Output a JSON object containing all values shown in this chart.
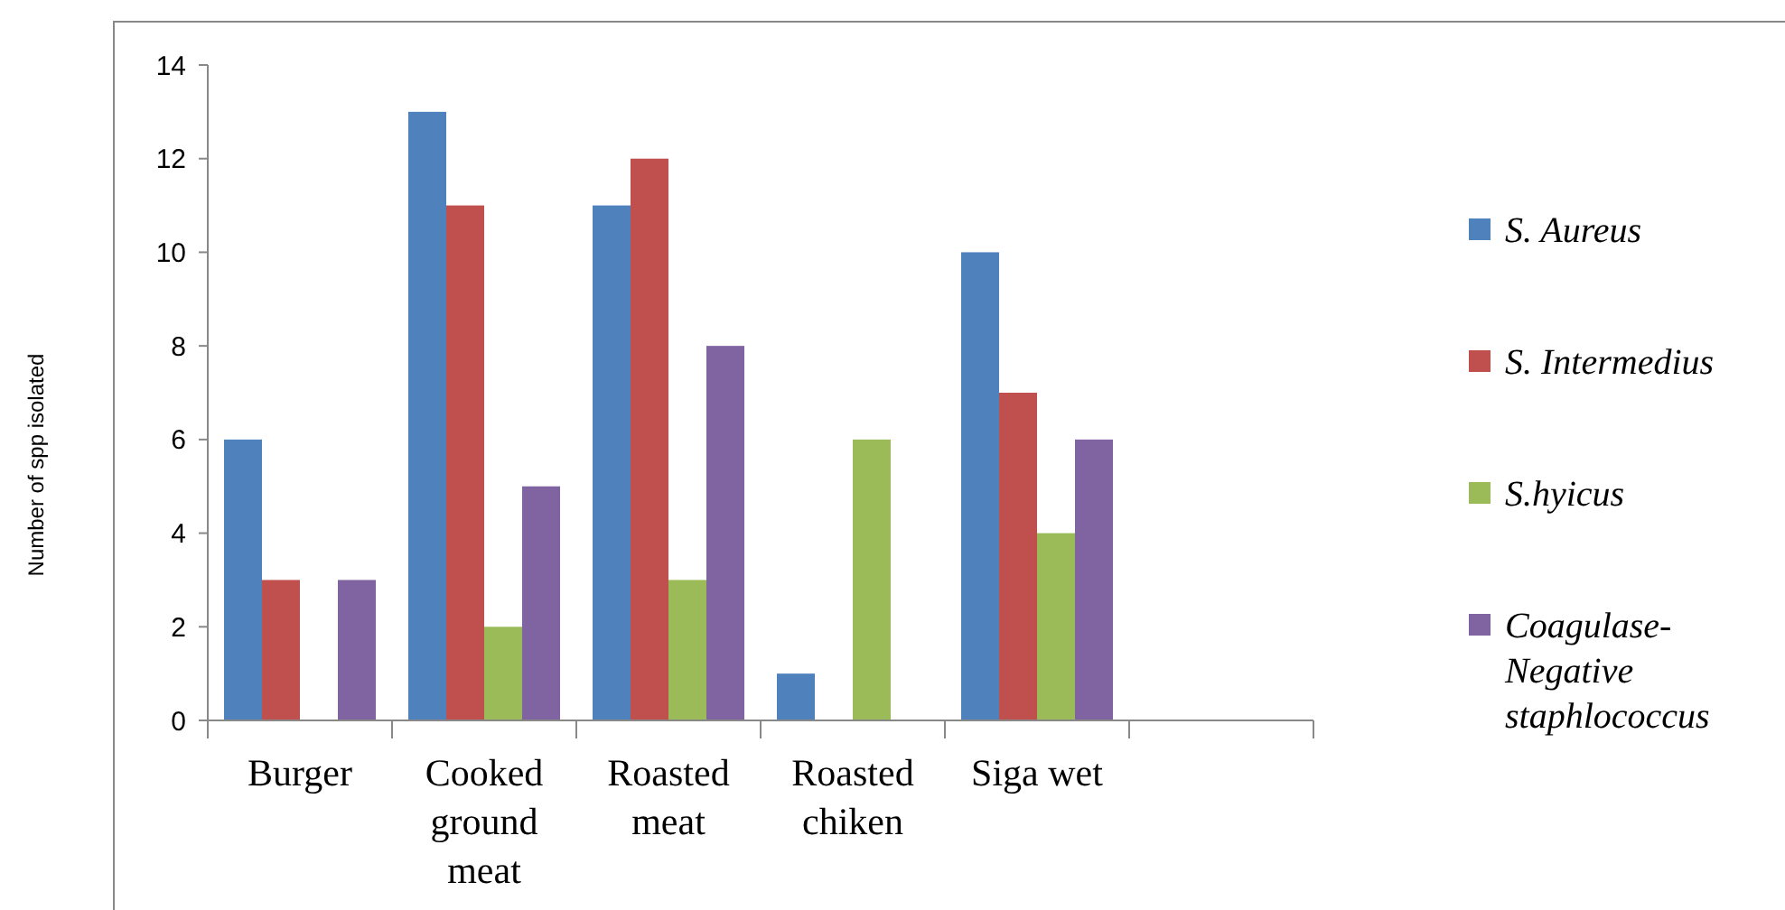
{
  "chart_data": {
    "type": "bar",
    "ylabel": "Number of spp isolated",
    "categories": [
      "Burger",
      "Cooked ground meat",
      "Roasted meat",
      "Roasted chiken",
      "Siga wet",
      null
    ],
    "series": [
      {
        "name": "S. Aureus",
        "color": "#4f81bd",
        "values": [
          6,
          13,
          11,
          1,
          10,
          null
        ]
      },
      {
        "name": "S. Intermedius",
        "color": "#c0504d",
        "values": [
          3,
          11,
          12,
          0,
          7,
          null
        ]
      },
      {
        "name": "S.hyicus",
        "color": "#9bbb59",
        "values": [
          0,
          2,
          3,
          6,
          4,
          null
        ]
      },
      {
        "name": "Coagulase-Negative staphlococcus",
        "color": "#8064a2",
        "values": [
          3,
          5,
          8,
          0,
          6,
          null
        ]
      }
    ],
    "ylim": [
      0,
      14
    ],
    "yticks": [
      0,
      2,
      4,
      6,
      8,
      10,
      12,
      14
    ],
    "grid": false,
    "legend": "right"
  }
}
